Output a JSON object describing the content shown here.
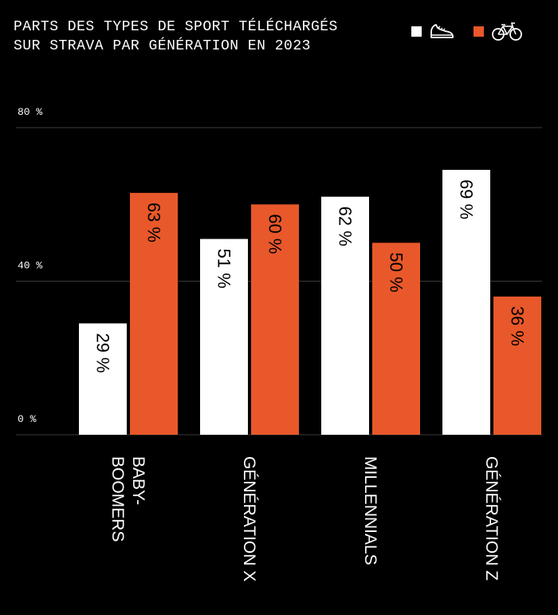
{
  "chart_data": {
    "type": "bar",
    "title_lines": [
      "PARTS DES TYPES DE SPORT TÉLÉCHARGÉS",
      "SUR STRAVA PAR GÉNÉRATION EN 2023"
    ],
    "categories": [
      "BABY-\nBOOMERS",
      "GÉNÉRATION X",
      "MILLENNIALS",
      "GÉNÉRATION Z"
    ],
    "series": [
      {
        "icon": "running-shoe-icon",
        "color": "#ffffff",
        "values": [
          29,
          51,
          62,
          69
        ],
        "labels": [
          "29 %",
          "51 %",
          "62 %",
          "69 %"
        ]
      },
      {
        "icon": "bicycle-icon",
        "color": "#e8582a",
        "values": [
          63,
          60,
          50,
          36
        ],
        "labels": [
          "63 %",
          "60 %",
          "50 %",
          "36 %"
        ]
      }
    ],
    "ylim": [
      0,
      80
    ],
    "yticks": [
      0,
      40,
      80
    ],
    "ytick_labels": [
      "0 %",
      "40 %",
      "80 %"
    ],
    "grid": true,
    "legend_position": "top-right"
  },
  "colors": {
    "background": "#000000",
    "gridline": "#3a3a3a",
    "run": "#ffffff",
    "bike": "#e8582a"
  }
}
